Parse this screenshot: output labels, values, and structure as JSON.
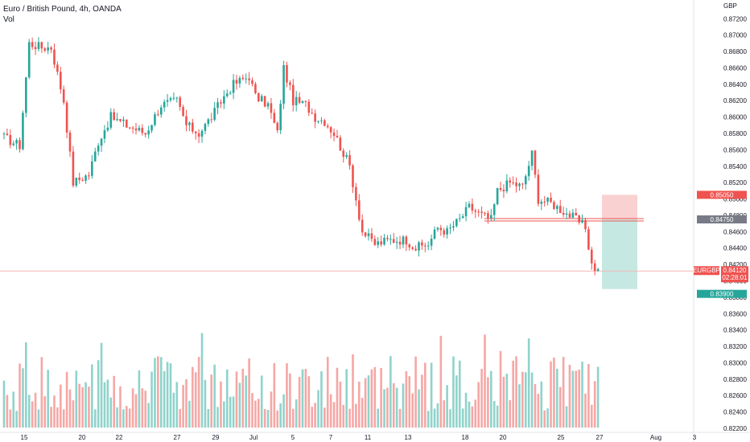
{
  "header": {
    "title": "Euro / British Pound, 4h, OANDA",
    "volume_label": "Vol"
  },
  "colors": {
    "up": "#26a69a",
    "down": "#ef5350",
    "up_volume": "#8fd3cb",
    "down_volume": "#f5a7a5",
    "stop_zone": "#f9d1d1",
    "target_zone": "#c5e8e3"
  },
  "chart_data": {
    "type": "candlestick",
    "instrument": "EURGBP",
    "currency": "GBP",
    "price_ticks": [
      "0.87200",
      "0.87000",
      "0.86800",
      "0.86600",
      "0.86400",
      "0.86200",
      "0.86000",
      "0.85800",
      "0.85600",
      "0.85400",
      "0.85200",
      "0.85000",
      "0.84800",
      "0.84600",
      "0.84400",
      "0.84200",
      "0.84000",
      "0.83800",
      "0.83600",
      "0.83400",
      "0.83200",
      "0.83000",
      "0.82800",
      "0.82600",
      "0.82400",
      "0.82200"
    ],
    "x_ticks": [
      "15",
      "20",
      "22",
      "27",
      "29",
      "Jul",
      "5",
      "7",
      "11",
      "13",
      "18",
      "20",
      "25",
      "27",
      "Aug",
      "3"
    ],
    "ylim": [
      0.8218,
      0.8735
    ],
    "markers": [
      {
        "label": "0.85050",
        "value": 0.8505,
        "color": "#ef5350"
      },
      {
        "label": "0.84750",
        "value": 0.8475,
        "color": "#787b86"
      },
      {
        "label": "EURGBP",
        "value": 0.8412,
        "color": "#ef5350"
      },
      {
        "label": "0.84120",
        "value": 0.8412,
        "color": "#ef5350"
      },
      {
        "label": "02:28:01",
        "value": 0.8412,
        "color": "#ef5350"
      },
      {
        "label": "0.83900",
        "value": 0.839,
        "color": "#26a69a"
      }
    ],
    "position": {
      "entry": 0.8475,
      "stop": 0.8505,
      "target": 0.839
    },
    "price_anchors": [
      [
        0,
        0.8575
      ],
      [
        5,
        0.8565
      ],
      [
        8,
        0.869
      ],
      [
        12,
        0.8685
      ],
      [
        15,
        0.8685
      ],
      [
        19,
        0.862
      ],
      [
        22,
        0.852
      ],
      [
        27,
        0.853
      ],
      [
        30,
        0.857
      ],
      [
        34,
        0.86
      ],
      [
        39,
        0.859
      ],
      [
        45,
        0.858
      ],
      [
        50,
        0.8615
      ],
      [
        55,
        0.862
      ],
      [
        58,
        0.859
      ],
      [
        62,
        0.858
      ],
      [
        66,
        0.86
      ],
      [
        70,
        0.8625
      ],
      [
        73,
        0.864
      ],
      [
        78,
        0.865
      ],
      [
        80,
        0.8625
      ],
      [
        84,
        0.8615
      ],
      [
        87,
        0.858
      ],
      [
        89,
        0.866
      ],
      [
        92,
        0.862
      ],
      [
        96,
        0.8615
      ],
      [
        99,
        0.86
      ],
      [
        102,
        0.8595
      ],
      [
        105,
        0.858
      ],
      [
        110,
        0.854
      ],
      [
        114,
        0.846
      ],
      [
        118,
        0.8445
      ],
      [
        123,
        0.845
      ],
      [
        128,
        0.845
      ],
      [
        131,
        0.844
      ],
      [
        135,
        0.8445
      ],
      [
        138,
        0.8465
      ],
      [
        141,
        0.846
      ],
      [
        145,
        0.8475
      ],
      [
        148,
        0.849
      ],
      [
        152,
        0.848
      ],
      [
        155,
        0.8475
      ],
      [
        157,
        0.851
      ],
      [
        161,
        0.852
      ],
      [
        165,
        0.8515
      ],
      [
        168,
        0.8555
      ],
      [
        170,
        0.85
      ],
      [
        174,
        0.8495
      ],
      [
        178,
        0.8485
      ],
      [
        182,
        0.8475
      ],
      [
        185,
        0.8465
      ],
      [
        187,
        0.842
      ],
      [
        189,
        0.8412
      ]
    ],
    "volume_note": "volume bars shown without axis"
  }
}
